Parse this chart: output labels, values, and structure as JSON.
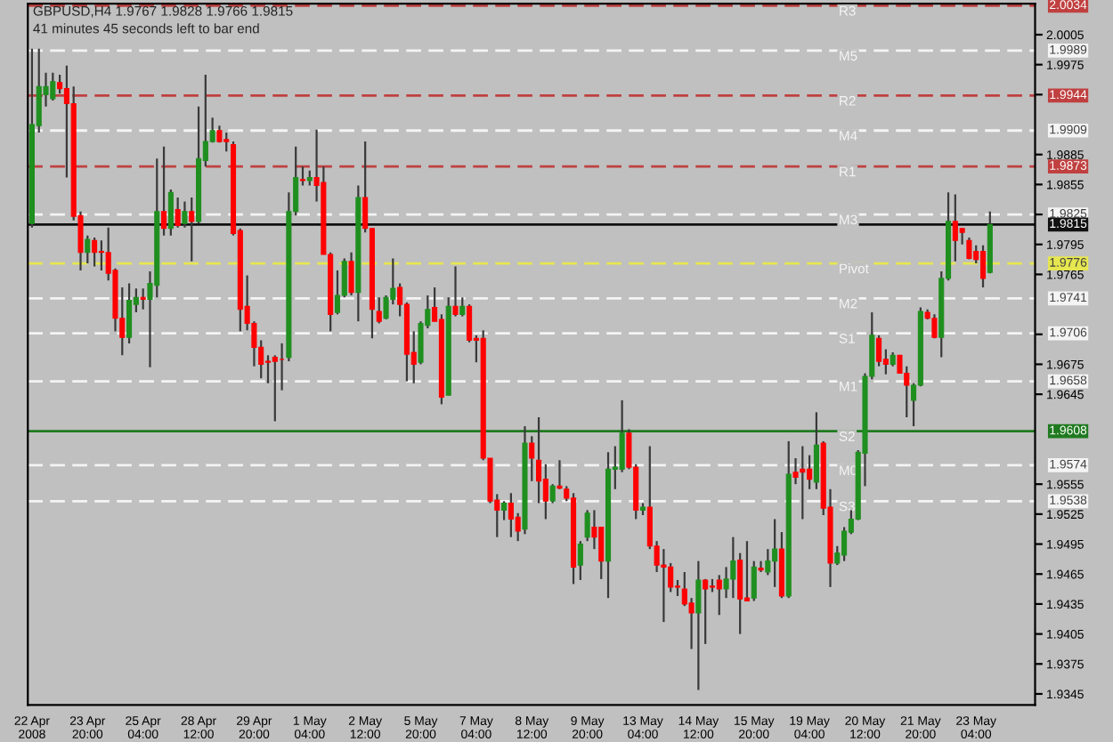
{
  "chart_data": {
    "type": "candlestick",
    "title": "GBPUSD,H4 1.9767 1.9828 1.9766 1.9815",
    "annotations": [
      "41 minutes 45 seconds left to bar end",
      {
        "text": "R3",
        "y": 2.0034
      },
      {
        "text": "M5",
        "y": 1.9989
      },
      {
        "text": "R2",
        "y": 1.9944
      },
      {
        "text": "M4",
        "y": 1.9909
      },
      {
        "text": "R1",
        "y": 1.9873
      },
      {
        "text": "M3",
        "y": 1.9825
      },
      {
        "text": "Pivot",
        "y": 1.9776
      },
      {
        "text": "M2",
        "y": 1.9741
      },
      {
        "text": "S1",
        "y": 1.9706
      },
      {
        "text": "M1",
        "y": 1.9658
      },
      {
        "text": "S2",
        "y": 1.9608
      },
      {
        "text": "M0",
        "y": 1.9574
      },
      {
        "text": "S3",
        "y": 1.9538
      }
    ],
    "categories": [
      "22 Apr 2008",
      null,
      null,
      null,
      null,
      null,
      null,
      null,
      "23 Apr 20:00",
      null,
      null,
      null,
      null,
      null,
      null,
      null,
      "25 Apr 04:00",
      null,
      null,
      null,
      null,
      null,
      null,
      null,
      "28 Apr 12:00",
      null,
      null,
      null,
      null,
      null,
      null,
      null,
      "29 Apr 20:00",
      null,
      null,
      null,
      null,
      null,
      null,
      null,
      "1 May 04:00",
      null,
      null,
      null,
      null,
      null,
      null,
      null,
      "2 May 12:00",
      null,
      null,
      null,
      null,
      null,
      null,
      null,
      "5 May 20:00",
      null,
      null,
      null,
      null,
      null,
      null,
      null,
      "7 May 04:00",
      null,
      null,
      null,
      null,
      null,
      null,
      null,
      "8 May 12:00",
      null,
      null,
      null,
      null,
      null,
      null,
      null,
      "9 May 20:00",
      null,
      null,
      null,
      null,
      null,
      null,
      null,
      "13 May 04:00",
      null,
      null,
      null,
      null,
      null,
      null,
      null,
      "14 May 12:00",
      null,
      null,
      null,
      null,
      null,
      null,
      null,
      "15 May 20:00",
      null,
      null,
      null,
      null,
      null,
      null,
      null,
      "19 May 04:00",
      null,
      null,
      null,
      null,
      null,
      null,
      null,
      "20 May 12:00",
      null,
      null,
      null,
      null,
      null,
      null,
      null,
      "21 May 20:00",
      null,
      null,
      null,
      null,
      null,
      null,
      null,
      "23 May 04:00",
      null,
      null
    ],
    "ohlc": [
      [
        1.9816,
        1.9991,
        1.9812,
        1.9915
      ],
      [
        1.9914,
        1.9991,
        1.9907,
        1.9953
      ],
      [
        1.9945,
        1.9967,
        1.9933,
        1.9953
      ],
      [
        1.9941,
        1.9967,
        1.9939,
        1.9958
      ],
      [
        1.9957,
        1.9965,
        1.9946,
        1.9951
      ],
      [
        1.9951,
        1.9974,
        1.9862,
        1.9936
      ],
      [
        1.9936,
        1.9953,
        1.9819,
        1.9823
      ],
      [
        1.9824,
        1.9828,
        1.9769,
        1.9787
      ],
      [
        1.9787,
        1.9804,
        1.9776,
        1.98
      ],
      [
        1.9799,
        1.9802,
        1.9773,
        1.9787
      ],
      [
        1.9788,
        1.9799,
        1.9769,
        1.9787
      ],
      [
        1.9787,
        1.9812,
        1.9759,
        1.9766
      ],
      [
        1.9769,
        1.9771,
        1.9708,
        1.9721
      ],
      [
        1.9721,
        1.9752,
        1.9684,
        1.9702
      ],
      [
        1.9702,
        1.9756,
        1.9696,
        1.9739
      ],
      [
        1.9735,
        1.9751,
        1.9727,
        1.9742
      ],
      [
        1.9742,
        1.9751,
        1.973,
        1.974
      ],
      [
        1.974,
        1.9768,
        1.9672,
        1.9756
      ],
      [
        1.9754,
        1.9881,
        1.9742,
        1.9828
      ],
      [
        1.9828,
        1.9893,
        1.9804,
        1.9811
      ],
      [
        1.9811,
        1.985,
        1.9804,
        1.9847
      ],
      [
        1.983,
        1.9842,
        1.9812,
        1.9814
      ],
      [
        1.9816,
        1.9838,
        1.9812,
        1.9828
      ],
      [
        1.9828,
        1.9842,
        1.9778,
        1.9818
      ],
      [
        1.9818,
        1.9933,
        1.9816,
        1.9881
      ],
      [
        1.9879,
        1.9965,
        1.9873,
        1.9898
      ],
      [
        1.9898,
        1.9922,
        1.9897,
        1.9909
      ],
      [
        1.9909,
        1.9914,
        1.9897,
        1.9898
      ],
      [
        1.99,
        1.9907,
        1.9888,
        1.9898
      ],
      [
        1.9895,
        1.9898,
        1.9804,
        1.9806
      ],
      [
        1.9809,
        1.9811,
        1.9708,
        1.973
      ],
      [
        1.9733,
        1.9764,
        1.9709,
        1.9716
      ],
      [
        1.9716,
        1.9718,
        1.9673,
        1.9692
      ],
      [
        1.9692,
        1.9699,
        1.9661,
        1.9675
      ],
      [
        1.9678,
        1.9684,
        1.9656,
        1.9677
      ],
      [
        1.9682,
        1.9684,
        1.9618,
        1.9678
      ],
      [
        1.968,
        1.9696,
        1.9649,
        1.968
      ],
      [
        1.9682,
        1.9847,
        1.9678,
        1.9828
      ],
      [
        1.9828,
        1.9893,
        1.9824,
        1.9862
      ],
      [
        1.986,
        1.9873,
        1.9854,
        1.9859
      ],
      [
        1.9859,
        1.9869,
        1.9854,
        1.9862
      ],
      [
        1.9862,
        1.991,
        1.9838,
        1.9854
      ],
      [
        1.9857,
        1.9873,
        1.9785,
        1.9785
      ],
      [
        1.9785,
        1.9787,
        1.9708,
        1.9725
      ],
      [
        1.9727,
        1.9769,
        1.9725,
        1.9744
      ],
      [
        1.9744,
        1.9781,
        1.9742,
        1.9778
      ],
      [
        1.9778,
        1.9787,
        1.9744,
        1.9747
      ],
      [
        1.9747,
        1.9854,
        1.9718,
        1.9842
      ],
      [
        1.9842,
        1.9898,
        1.9807,
        1.9811
      ],
      [
        1.9811,
        1.9811,
        1.9701,
        1.973
      ],
      [
        1.9728,
        1.9742,
        1.9716,
        1.9718
      ],
      [
        1.9721,
        1.9744,
        1.972,
        1.9742
      ],
      [
        1.974,
        1.9781,
        1.9735,
        1.9751
      ],
      [
        1.9752,
        1.9756,
        1.9723,
        1.9735
      ],
      [
        1.9735,
        1.9737,
        1.9658,
        1.9685
      ],
      [
        1.9687,
        1.9708,
        1.9656,
        1.9675
      ],
      [
        1.9677,
        1.9718,
        1.9675,
        1.9716
      ],
      [
        1.9714,
        1.9744,
        1.9711,
        1.973
      ],
      [
        1.9732,
        1.9752,
        1.9718,
        1.9718
      ],
      [
        1.972,
        1.9725,
        1.9635,
        1.9642
      ],
      [
        1.9644,
        1.9742,
        1.9644,
        1.9733
      ],
      [
        1.9733,
        1.9773,
        1.9723,
        1.9725
      ],
      [
        1.9725,
        1.9742,
        1.9723,
        1.9733
      ],
      [
        1.9733,
        1.9735,
        1.9697,
        1.9699
      ],
      [
        1.9701,
        1.9704,
        1.9677,
        1.9699
      ],
      [
        1.9701,
        1.9709,
        1.9579,
        1.9581
      ],
      [
        1.9581,
        1.9581,
        1.9536,
        1.9538
      ],
      [
        1.9539,
        1.9545,
        1.9502,
        1.9529
      ],
      [
        1.9529,
        1.9538,
        1.9519,
        1.9536
      ],
      [
        1.9536,
        1.9546,
        1.9502,
        1.952
      ],
      [
        1.9522,
        1.9526,
        1.9498,
        1.9508
      ],
      [
        1.951,
        1.9613,
        1.9505,
        1.9596
      ],
      [
        1.9596,
        1.9603,
        1.9558,
        1.9581
      ],
      [
        1.9579,
        1.9622,
        1.9536,
        1.9558
      ],
      [
        1.956,
        1.9575,
        1.952,
        1.9538
      ],
      [
        1.9538,
        1.9555,
        1.9536,
        1.9553
      ],
      [
        1.9553,
        1.9579,
        1.955,
        1.9551
      ],
      [
        1.955,
        1.9553,
        1.9538,
        1.9541
      ],
      [
        1.9541,
        1.9546,
        1.9455,
        1.9472
      ],
      [
        1.9474,
        1.9498,
        1.9459,
        1.9495
      ],
      [
        1.9502,
        1.9529,
        1.9498,
        1.9526
      ],
      [
        1.9512,
        1.9529,
        1.949,
        1.9502
      ],
      [
        1.9512,
        1.9512,
        1.946,
        1.9478
      ],
      [
        1.9478,
        1.9587,
        1.9441,
        1.957
      ],
      [
        1.957,
        1.9593,
        1.955,
        1.9572
      ],
      [
        1.957,
        1.9639,
        1.9567,
        1.9606
      ],
      [
        1.9606,
        1.961,
        1.957,
        1.9572
      ],
      [
        1.9572,
        1.9575,
        1.952,
        1.9529
      ],
      [
        1.9529,
        1.9536,
        1.9524,
        1.9532
      ],
      [
        1.9532,
        1.9593,
        1.949,
        1.9493
      ],
      [
        1.9493,
        1.9498,
        1.9467,
        1.9474
      ],
      [
        1.9474,
        1.949,
        1.9417,
        1.9472
      ],
      [
        1.9472,
        1.9476,
        1.9447,
        1.9452
      ],
      [
        1.9453,
        1.9459,
        1.9443,
        1.9452
      ],
      [
        1.945,
        1.9467,
        1.9433,
        1.9435
      ],
      [
        1.9436,
        1.9441,
        1.939,
        1.9426
      ],
      [
        1.9426,
        1.9478,
        1.9349,
        1.9459
      ],
      [
        1.9459,
        1.946,
        1.9395,
        1.945
      ],
      [
        1.9453,
        1.946,
        1.9447,
        1.9452
      ],
      [
        1.9459,
        1.9464,
        1.9424,
        1.945
      ],
      [
        1.945,
        1.9472,
        1.9441,
        1.946
      ],
      [
        1.946,
        1.9502,
        1.9441,
        1.9478
      ],
      [
        1.9479,
        1.9486,
        1.9405,
        1.944
      ],
      [
        1.9441,
        1.9498,
        1.9438,
        1.9438
      ],
      [
        1.9441,
        1.9478,
        1.9438,
        1.9472
      ],
      [
        1.9471,
        1.9478,
        1.9467,
        1.9469
      ],
      [
        1.9467,
        1.949,
        1.9464,
        1.9478
      ],
      [
        1.9478,
        1.952,
        1.9452,
        1.949
      ],
      [
        1.949,
        1.9507,
        1.9441,
        1.9443
      ],
      [
        1.9443,
        1.9598,
        1.9441,
        1.9565
      ],
      [
        1.9567,
        1.9581,
        1.9555,
        1.9562
      ],
      [
        1.957,
        1.9593,
        1.952,
        1.9567
      ],
      [
        1.957,
        1.9584,
        1.955,
        1.956
      ],
      [
        1.9557,
        1.9627,
        1.955,
        1.9594
      ],
      [
        1.9596,
        1.9598,
        1.9524,
        1.9531
      ],
      [
        1.9532,
        1.955,
        1.9452,
        1.9476
      ],
      [
        1.9476,
        1.9493,
        1.9474,
        1.9486
      ],
      [
        1.9484,
        1.9512,
        1.9478,
        1.9508
      ],
      [
        1.9507,
        1.9529,
        1.9505,
        1.952
      ],
      [
        1.952,
        1.9589,
        1.9519,
        1.9587
      ],
      [
        1.9586,
        1.9666,
        1.9553,
        1.9663
      ],
      [
        1.9663,
        1.9727,
        1.966,
        1.9704
      ],
      [
        1.9701,
        1.9704,
        1.9673,
        1.9678
      ],
      [
        1.968,
        1.969,
        1.9665,
        1.9675
      ],
      [
        1.9675,
        1.9687,
        1.9673,
        1.9684
      ],
      [
        1.9684,
        1.9684,
        1.9666,
        1.9666
      ],
      [
        1.9666,
        1.9673,
        1.9622,
        1.9654
      ],
      [
        1.9639,
        1.9656,
        1.9613,
        1.9654
      ],
      [
        1.9654,
        1.9732,
        1.9653,
        1.9728
      ],
      [
        1.9727,
        1.973,
        1.972,
        1.9721
      ],
      [
        1.9721,
        1.9725,
        1.9701,
        1.9702
      ],
      [
        1.9702,
        1.9768,
        1.9682,
        1.9761
      ],
      [
        1.9761,
        1.9847,
        1.9759,
        1.9818
      ],
      [
        1.9818,
        1.9845,
        1.9778,
        1.9799
      ],
      [
        1.9811,
        1.9811,
        1.9795,
        1.9807
      ],
      [
        1.9799,
        1.9802,
        1.978,
        1.9781
      ],
      [
        1.9788,
        1.9794,
        1.9776,
        1.978
      ],
      [
        1.9788,
        1.9794,
        1.9752,
        1.9761
      ],
      [
        1.9767,
        1.9828,
        1.9766,
        1.9815
      ]
    ],
    "colors": [
      "#1f8f1f",
      "#1f8f1f",
      "#1f8f1f",
      "#1f8f1f",
      "#ff0000",
      "#ff0000",
      "#ff0000",
      "#ff0000",
      "#1f8f1f",
      "#ff0000",
      "#ff0000",
      "#ff0000",
      "#ff0000",
      "#ff0000",
      "#1f8f1f",
      "#1f8f1f",
      "#ff0000",
      "#1f8f1f",
      "#1f8f1f",
      "#ff0000",
      "#1f8f1f",
      "#ff0000",
      "#1f8f1f",
      "#ff0000",
      "#1f8f1f",
      "#1f8f1f",
      "#1f8f1f",
      "#ff0000",
      "#ff0000",
      "#ff0000",
      "#ff0000",
      "#ff0000",
      "#ff0000",
      "#ff0000",
      "#ff0000",
      "#ff0000",
      "#ff0000",
      "#1f8f1f",
      "#1f8f1f",
      "#ff0000",
      "#1f8f1f",
      "#ff0000",
      "#ff0000",
      "#ff0000",
      "#1f8f1f",
      "#1f8f1f",
      "#ff0000",
      "#1f8f1f",
      "#ff0000",
      "#ff0000",
      "#ff0000",
      "#1f8f1f",
      "#1f8f1f",
      "#ff0000",
      "#ff0000",
      "#ff0000",
      "#1f8f1f",
      "#1f8f1f",
      "#ff0000",
      "#ff0000",
      "#1f8f1f",
      "#ff0000",
      "#1f8f1f",
      "#ff0000",
      "#ff0000",
      "#ff0000",
      "#ff0000",
      "#ff0000",
      "#1f8f1f",
      "#ff0000",
      "#ff0000",
      "#1f8f1f",
      "#ff0000",
      "#ff0000",
      "#ff0000",
      "#1f8f1f",
      "#ff0000",
      "#ff0000",
      "#ff0000",
      "#1f8f1f",
      "#1f8f1f",
      "#ff0000",
      "#ff0000",
      "#1f8f1f",
      "#1f8f1f",
      "#1f8f1f",
      "#ff0000",
      "#ff0000",
      "#1f8f1f",
      "#ff0000",
      "#ff0000",
      "#ff0000",
      "#ff0000",
      "#ff0000",
      "#ff0000",
      "#ff0000",
      "#1f8f1f",
      "#ff0000",
      "#ff0000",
      "#ff0000",
      "#1f8f1f",
      "#1f8f1f",
      "#ff0000",
      "#ff0000",
      "#1f8f1f",
      "#ff0000",
      "#1f8f1f",
      "#1f8f1f",
      "#ff0000",
      "#1f8f1f",
      "#ff0000",
      "#ff0000",
      "#ff0000",
      "#1f8f1f",
      "#ff0000",
      "#ff0000",
      "#1f8f1f",
      "#1f8f1f",
      "#1f8f1f",
      "#1f8f1f",
      "#1f8f1f",
      "#1f8f1f",
      "#ff0000",
      "#ff0000",
      "#1f8f1f",
      "#ff0000",
      "#ff0000",
      "#1f8f1f",
      "#1f8f1f",
      "#ff0000",
      "#ff0000",
      "#1f8f1f",
      "#1f8f1f",
      "#ff0000",
      "#ff0000",
      "#ff0000",
      "#ff0000",
      "#ff0000",
      "#1f8f1f"
    ],
    "ylim": [
      1.9334,
      2.0036
    ],
    "yticks": [
      1.9345,
      1.9375,
      1.9405,
      1.9435,
      1.9465,
      1.9495,
      1.9525,
      1.9555,
      1.9645,
      1.9675,
      {
        "value": 1.9705,
        "label": null
      },
      1.9765,
      1.9795,
      {
        "value": 1.9825,
        "label": null
      },
      1.9855,
      1.9885,
      {
        "value": 1.9945,
        "label": null
      },
      1.9975,
      2.0005
    ],
    "ref_lines": [
      {
        "axis": "y",
        "value": 2.0034,
        "label": "2.0034",
        "color": "#c04040",
        "line_style": "dashed"
      },
      {
        "axis": "y",
        "value": 1.9989,
        "label": "1.9989",
        "color": "#f4f4f4",
        "line_style": "dashed"
      },
      {
        "axis": "y",
        "value": 1.9944,
        "label": "1.9944",
        "color": "#c04040",
        "line_style": "dashed"
      },
      {
        "axis": "y",
        "value": 1.9909,
        "label": "1.9909",
        "color": "#f4f4f4",
        "line_style": "dashed"
      },
      {
        "axis": "y",
        "value": 1.9873,
        "label": "1.9873",
        "color": "#c04040",
        "line_style": "dashed"
      },
      {
        "axis": "y",
        "value": 1.9825,
        "label": "1.9825",
        "color": "#f4f4f4",
        "line_style": "dashed"
      },
      {
        "axis": "y",
        "value": 1.9815,
        "label": "1.9815",
        "color": "#111111",
        "line_style": "solid"
      },
      {
        "axis": "y",
        "value": 1.9776,
        "label": "1.9776",
        "color": "#e6e650",
        "line_style": "dashed"
      },
      {
        "axis": "y",
        "value": 1.9741,
        "label": "1.9741",
        "color": "#f4f4f4",
        "line_style": "dashed"
      },
      {
        "axis": "y",
        "value": 1.9706,
        "label": "1.9706",
        "color": "#f4f4f4",
        "line_style": "dashed"
      },
      {
        "axis": "y",
        "value": 1.9658,
        "label": "1.9658",
        "color": "#f4f4f4",
        "line_style": "dashed"
      },
      {
        "axis": "y",
        "value": 1.9608,
        "label": "1.9608",
        "color": "#1f7a1f",
        "line_style": "solid"
      },
      {
        "axis": "y",
        "value": 1.9574,
        "label": "1.9574",
        "color": "#f4f4f4",
        "line_style": "dashed"
      },
      {
        "axis": "y",
        "value": 1.9538,
        "label": "1.9538",
        "color": "#f4f4f4",
        "line_style": "dashed"
      }
    ],
    "grid": false
  }
}
